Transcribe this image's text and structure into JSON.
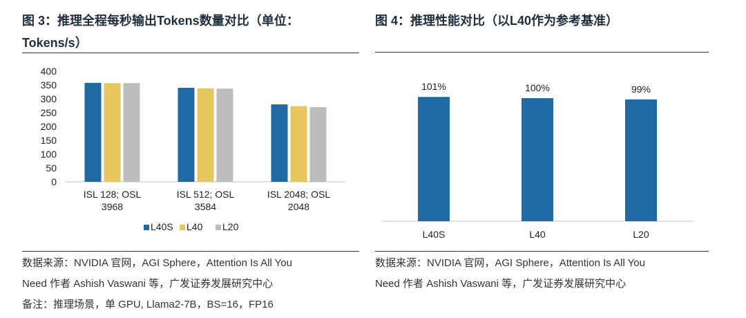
{
  "figure3": {
    "title": "图 3：推理全程每秒输出Tokens数量对比（单位：Tokens/s）",
    "source_line1": "数据来源：NVIDIA 官网，AGI Sphere，Attention Is All You",
    "source_line2": "Need 作者 Ashish Vaswani 等，广发证券发展研究中心",
    "note": "备注：推理场景，单 GPU, Llama2-7B，BS=16，FP16"
  },
  "figure4": {
    "title": "图 4：推理性能对比（以L40作为参考基准）",
    "source_line1": "数据来源：NVIDIA 官网，AGI Sphere，Attention Is All You",
    "source_line2": "Need 作者 Ashish Vaswani 等，广发证券发展研究中心"
  },
  "chart_data": [
    {
      "type": "bar",
      "categories": [
        [
          "ISL 128; OSL",
          "3968"
        ],
        [
          "ISL 512; OSL",
          "3584"
        ],
        [
          "ISL 2048; OSL",
          "2048"
        ]
      ],
      "series": [
        {
          "name": "L40S",
          "values": [
            358,
            340,
            280
          ]
        },
        {
          "name": "L40",
          "values": [
            357,
            338,
            274
          ]
        },
        {
          "name": "L20",
          "values": [
            357,
            337,
            270
          ]
        }
      ],
      "yticks": [
        "0",
        "50",
        "100",
        "150",
        "200",
        "250",
        "300",
        "350",
        "400"
      ],
      "ylim": [
        0,
        400
      ],
      "grid": false,
      "legend": "bottom",
      "colors": [
        "#1f6aa5",
        "#e7c65f",
        "#bdbdbd"
      ]
    },
    {
      "type": "bar",
      "categories": [
        "L40S",
        "L40",
        "L20"
      ],
      "values": [
        101,
        100,
        99
      ],
      "data_labels": [
        "101%",
        "100%",
        "99%"
      ],
      "ylim": [
        0,
        130
      ],
      "grid": false,
      "color": "#1f6aa5"
    }
  ]
}
